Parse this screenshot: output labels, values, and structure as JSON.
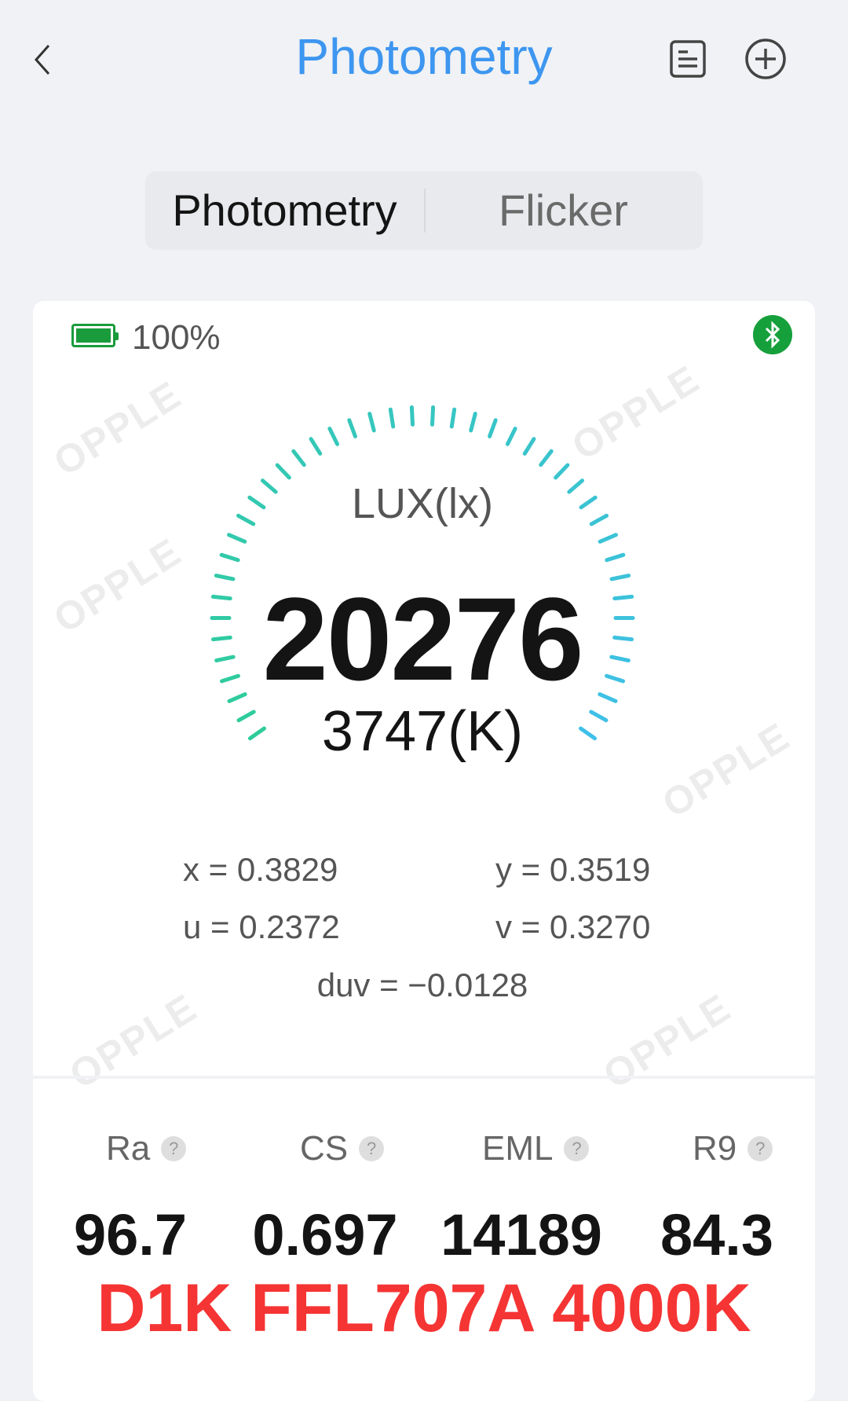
{
  "header": {
    "title": "Photometry",
    "back_icon": "chevron-left-icon",
    "actions": [
      "document-list-icon",
      "add-circle-icon"
    ]
  },
  "tabs": [
    {
      "label": "Photometry",
      "active": true
    },
    {
      "label": "Flicker",
      "active": false
    }
  ],
  "device": {
    "battery": "100%",
    "battery_level": 1.0,
    "bluetooth_connected": true
  },
  "gauge": {
    "label": "LUX(lx)",
    "value": "20276",
    "cct": "3747(K)",
    "colors": [
      "#2ecc9a",
      "#3fc0e8"
    ]
  },
  "coords": {
    "x": "x = 0.3829",
    "y": "y = 0.3519",
    "u": "u = 0.2372",
    "v": "v = 0.3270",
    "duv": "duv = −0.0128"
  },
  "metrics": [
    {
      "label": "Ra",
      "value": "96.7"
    },
    {
      "label": "CS",
      "value": "0.697"
    },
    {
      "label": "EML",
      "value": "14189"
    },
    {
      "label": "R9",
      "value": "84.3"
    }
  ],
  "help_glyph": "?",
  "model": "D1K FFL707A 4000K",
  "watermark": "OPPLE",
  "colors": {
    "accent": "#3d96f0",
    "battery": "#1a9b3c",
    "model_text": "#f53434"
  }
}
